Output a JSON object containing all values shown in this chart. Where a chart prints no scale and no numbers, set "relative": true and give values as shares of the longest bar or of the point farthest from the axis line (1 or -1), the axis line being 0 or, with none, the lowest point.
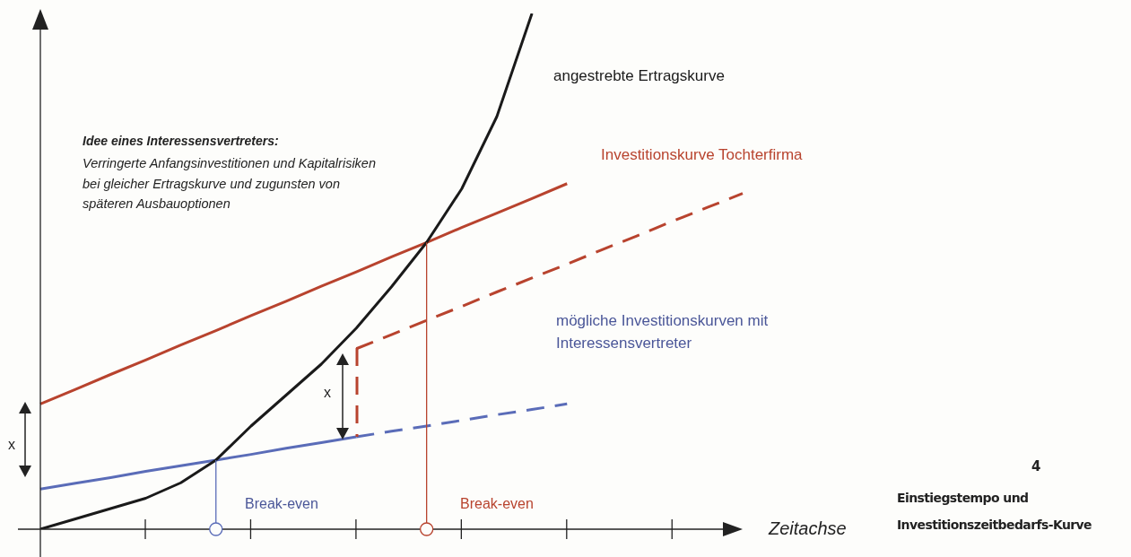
{
  "chart_data": {
    "type": "line",
    "relative": true,
    "title": "Einstiegstempo und Investitionszeitbedarfs-Kurve",
    "xlabel": "Zeitachse",
    "categories": [
      null,
      null,
      null,
      null,
      null,
      null,
      null,
      null,
      null,
      null,
      null,
      null,
      null,
      null,
      null,
      null,
      null,
      null,
      null,
      null,
      null
    ],
    "legend": false,
    "marker": "none",
    "annotations": [
      "4",
      "Idee eines Interessensvertreters:",
      "Verringerte Anfangsinvestitionen  und Kapitalrisiken bei gleicher Ertragskurve und zugunsten von späteren Ausbauoptionen",
      "mögliche Investitionskurven mit Interessensvertreter",
      "x",
      "x",
      "Break-even",
      "Break-even"
    ],
    "series": [
      {
        "name": "angestrebte Ertragskurve",
        "color": "#1a1a1a",
        "values": [
          0,
          0.02,
          0.04,
          0.06,
          0.09,
          0.134,
          0.2,
          0.26,
          0.32,
          0.39,
          0.47,
          0.556,
          0.66,
          0.8,
          1,
          null,
          null,
          null,
          null,
          null,
          null
        ]
      },
      {
        "name": "Investitionskurve Tochterfirma",
        "color": "#b8432e",
        "values": [
          0.243,
          0.271,
          0.3,
          0.328,
          0.357,
          0.385,
          0.414,
          0.442,
          0.471,
          0.499,
          0.528,
          0.556,
          0.585,
          0.613,
          0.641,
          0.67,
          null,
          null,
          null,
          null,
          null
        ]
      },
      {
        "color": "#b8432e",
        "line_style": "dashed",
        "values": [
          null,
          null,
          null,
          null,
          null,
          null,
          null,
          null,
          null,
          0.35,
          0.377,
          0.405,
          0.432,
          0.46,
          0.487,
          0.514,
          0.542,
          0.569,
          0.597,
          0.624,
          0.651
        ]
      },
      {
        "color": "#5a6cb8",
        "values": [
          0.078,
          0.089,
          0.1,
          0.112,
          0.123,
          0.134,
          0.145,
          0.157,
          0.168,
          0.179,
          null,
          null,
          null,
          null,
          null,
          null,
          null,
          null,
          null,
          null,
          null
        ]
      },
      {
        "color": "#5a6cb8",
        "line_style": "dashed",
        "values": [
          null,
          null,
          null,
          null,
          null,
          null,
          null,
          null,
          null,
          0.179,
          0.19,
          0.2,
          0.211,
          0.222,
          0.232,
          0.243,
          null,
          null,
          null,
          null,
          null
        ]
      }
    ]
  }
}
